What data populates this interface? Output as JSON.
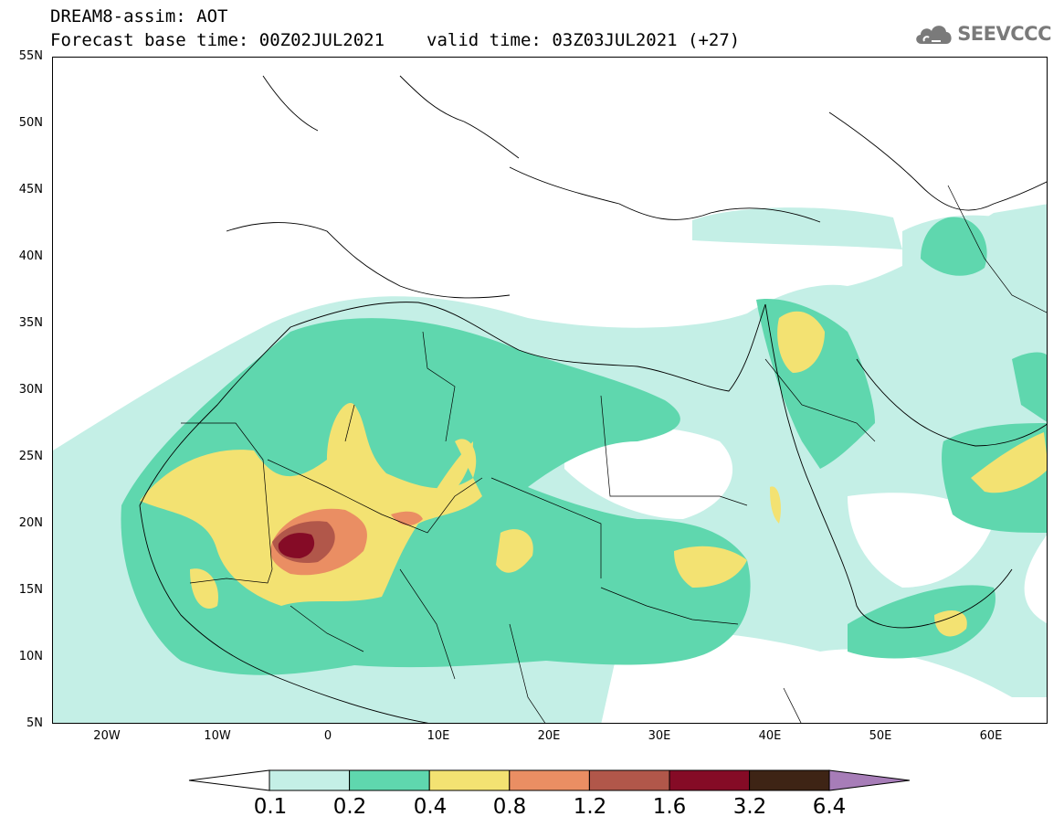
{
  "header": {
    "title": "DREAM8-assim: AOT",
    "base_time": "Forecast base time: 00Z02JUL2021",
    "valid_time": "valid time: 03Z03JUL2021 (+27)"
  },
  "logo": {
    "text": "SEEVCCC",
    "icon": "cloud-icon"
  },
  "map": {
    "lat_labels": [
      "55N",
      "50N",
      "45N",
      "40N",
      "35N",
      "30N",
      "25N",
      "20N",
      "15N",
      "10N",
      "5N"
    ],
    "lon_labels": [
      "20W",
      "10W",
      "0",
      "10E",
      "20E",
      "30E",
      "40E",
      "50E",
      "60E"
    ]
  },
  "colorbar": {
    "labels": [
      "0.1",
      "0.2",
      "0.4",
      "0.8",
      "1.2",
      "1.6",
      "3.2",
      "6.4"
    ],
    "colors": [
      "#c4efe6",
      "#5fd7ae",
      "#f3e272",
      "#ea8e63",
      "#b1574a",
      "#850b26",
      "#3e2415",
      "#a77db8"
    ]
  }
}
